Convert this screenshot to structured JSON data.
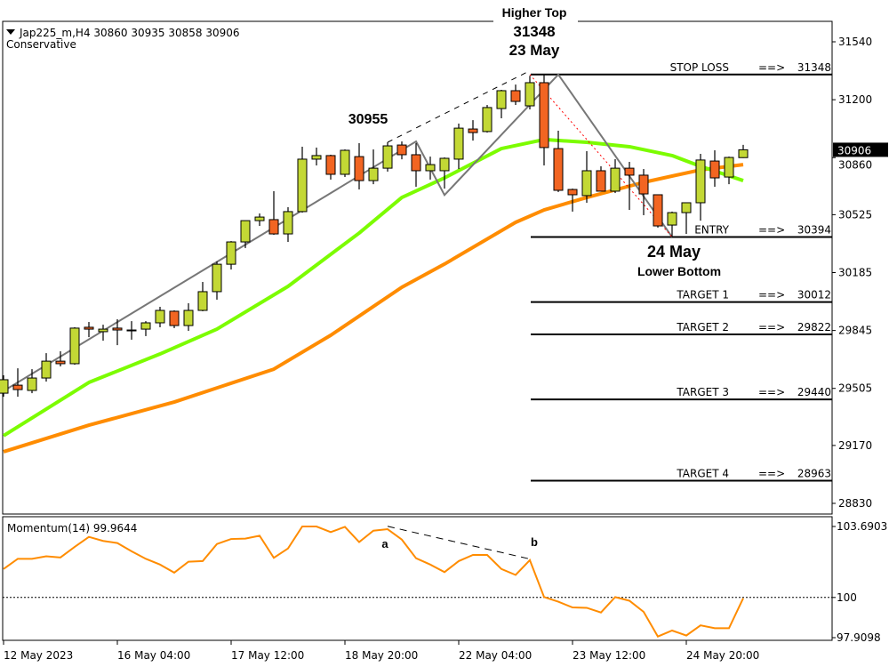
{
  "header": {
    "symbol_line": "Jap225_m,H4  30860 30935 30858 30906",
    "subtitle": "Conservative"
  },
  "annotations": {
    "higher_top": "Higher Top",
    "top_price": "31348",
    "top_date": "23 May",
    "prev_high": "30955",
    "bottom_date": "24 May",
    "lower_bottom": "Lower Bottom",
    "mom_a": "a",
    "mom_b": "b"
  },
  "chart_data": [
    {
      "type": "candlestick",
      "title": "Jap225_m,H4",
      "colors": {
        "bull": "#c3d835",
        "bear": "#f26522",
        "ma_fast": "#7cfc00",
        "ma_slow": "#ff8c00",
        "current_badge": "#000000"
      },
      "ylim": [
        28750,
        31640
      ],
      "y_ticks": [
        31540,
        31200,
        30860,
        30525,
        30185,
        29845,
        29505,
        29170,
        28830
      ],
      "current_price": "30906",
      "x_ticks": [
        {
          "index": 0,
          "label": "12 May 2023"
        },
        {
          "index": 8,
          "label": "16 May 04:00"
        },
        {
          "index": 16,
          "label": "17 May 12:00"
        },
        {
          "index": 24,
          "label": "18 May 20:00"
        },
        {
          "index": 32,
          "label": "22 May 04:00"
        },
        {
          "index": 40,
          "label": "23 May 12:00"
        },
        {
          "index": 48,
          "label": "24 May 20:00"
        }
      ],
      "ohlc": [
        [
          29477,
          29582,
          29456,
          29556
        ],
        [
          29524,
          29623,
          29456,
          29498
        ],
        [
          29493,
          29618,
          29477,
          29566
        ],
        [
          29566,
          29712,
          29545,
          29665
        ],
        [
          29665,
          29723,
          29634,
          29650
        ],
        [
          29650,
          29864,
          29644,
          29859
        ],
        [
          29864,
          29895,
          29806,
          29853
        ],
        [
          29838,
          29879,
          29785,
          29853
        ],
        [
          29859,
          29911,
          29759,
          29848
        ],
        [
          29848,
          29900,
          29791,
          29848
        ],
        [
          29853,
          29900,
          29812,
          29890
        ],
        [
          29890,
          29984,
          29864,
          29963
        ],
        [
          29958,
          29963,
          29859,
          29874
        ],
        [
          29874,
          30005,
          29843,
          29963
        ],
        [
          29963,
          30130,
          29958,
          30073
        ],
        [
          30073,
          30250,
          30026,
          30234
        ],
        [
          30234,
          30370,
          30203,
          30365
        ],
        [
          30365,
          30490,
          30329,
          30490
        ],
        [
          30490,
          30532,
          30459,
          30511
        ],
        [
          30496,
          30663,
          30407,
          30412
        ],
        [
          30412,
          30569,
          30365,
          30543
        ],
        [
          30543,
          30924,
          30537,
          30851
        ],
        [
          30851,
          30919,
          30814,
          30872
        ],
        [
          30872,
          30877,
          30731,
          30762
        ],
        [
          30762,
          30908,
          30746,
          30903
        ],
        [
          30866,
          30945,
          30673,
          30725
        ],
        [
          30725,
          30908,
          30704,
          30798
        ],
        [
          30798,
          30950,
          30778,
          30929
        ],
        [
          30934,
          30955,
          30850,
          30877
        ],
        [
          30877,
          30945,
          30689,
          30783
        ],
        [
          30783,
          30866,
          30731,
          30819
        ],
        [
          30783,
          30861,
          30678,
          30856
        ],
        [
          30851,
          31060,
          30793,
          31033
        ],
        [
          31028,
          31080,
          30960,
          31007
        ],
        [
          31013,
          31169,
          31007,
          31154
        ],
        [
          31148,
          31258,
          31091,
          31253
        ],
        [
          31253,
          31289,
          31169,
          31190
        ],
        [
          31164,
          31340,
          31143,
          31300
        ],
        [
          31300,
          31348,
          30814,
          30919
        ],
        [
          30913,
          31018,
          30658,
          30668
        ],
        [
          30673,
          30678,
          30543,
          30642
        ],
        [
          30637,
          30898,
          30595,
          30783
        ],
        [
          30783,
          30809,
          30663,
          30663
        ],
        [
          30663,
          30851,
          30652,
          30798
        ],
        [
          30798,
          30835,
          30553,
          30757
        ],
        [
          30757,
          30793,
          30522,
          30647
        ],
        [
          30642,
          30642,
          30449,
          30459
        ],
        [
          30464,
          30543,
          30394,
          30537
        ],
        [
          30537,
          30595,
          30412,
          30595
        ],
        [
          30595,
          30882,
          30490,
          30846
        ],
        [
          30840,
          30903,
          30689,
          30741
        ],
        [
          30746,
          30866,
          30704,
          30861
        ],
        [
          30860,
          30935,
          30858,
          30906
        ]
      ],
      "ma_fast": [
        [
          0,
          29227
        ],
        [
          6,
          29540
        ],
        [
          11,
          29707
        ],
        [
          15,
          29853
        ],
        [
          20,
          30104
        ],
        [
          25,
          30417
        ],
        [
          28,
          30626
        ],
        [
          31,
          30741
        ],
        [
          35,
          30913
        ],
        [
          38,
          30966
        ],
        [
          41,
          30950
        ],
        [
          44,
          30924
        ],
        [
          47,
          30872
        ],
        [
          49,
          30809
        ],
        [
          52,
          30725
        ]
      ],
      "ma_slow": [
        [
          0,
          29133
        ],
        [
          6,
          29289
        ],
        [
          12,
          29425
        ],
        [
          19,
          29618
        ],
        [
          23,
          29817
        ],
        [
          28,
          30099
        ],
        [
          31,
          30235
        ],
        [
          36,
          30480
        ],
        [
          38,
          30553
        ],
        [
          41,
          30626
        ],
        [
          45,
          30715
        ],
        [
          49,
          30788
        ],
        [
          52,
          30819
        ]
      ],
      "levels": [
        {
          "label": "STOP LOSS",
          "arrow": "==>",
          "value": "31348",
          "price": 31348
        },
        {
          "label": "ENTRY",
          "arrow": "==>",
          "value": "30394",
          "price": 30394
        },
        {
          "label": "TARGET 1",
          "arrow": "==>",
          "value": "30012",
          "price": 30012
        },
        {
          "label": "TARGET 2",
          "arrow": "==>",
          "value": "29822",
          "price": 29822
        },
        {
          "label": "TARGET 3",
          "arrow": "==>",
          "value": "29440",
          "price": 29440
        },
        {
          "label": "TARGET 4",
          "arrow": "==>",
          "value": "28963",
          "price": 28963
        }
      ],
      "zigzag": [
        [
          0,
          29490
        ],
        [
          29,
          30955
        ],
        [
          31,
          30640
        ],
        [
          39,
          31348
        ],
        [
          47,
          30394
        ]
      ],
      "upper_trendline": [
        [
          27,
          30950
        ],
        [
          37,
          31370
        ]
      ],
      "red_dotted_line": [
        [
          37,
          31348
        ],
        [
          47,
          30394
        ]
      ]
    },
    {
      "type": "line",
      "title": "Momentum(14) 99.9644",
      "ylim": [
        97.9098,
        103.6903
      ],
      "y_ticks": [
        "103.6903",
        "100",
        "97.9098"
      ],
      "reference_line": 100,
      "values": [
        101.48,
        102.01,
        102.01,
        102.14,
        102.08,
        102.63,
        103.15,
        102.94,
        102.83,
        102.4,
        102.01,
        101.71,
        101.29,
        101.86,
        101.89,
        102.78,
        103.04,
        103.06,
        103.21,
        102.06,
        102.55,
        103.69,
        103.69,
        103.4,
        103.67,
        102.88,
        103.47,
        103.55,
        103.01,
        102.04,
        101.71,
        101.32,
        101.89,
        102.21,
        102.21,
        101.48,
        101.17,
        101.94,
        100.02,
        99.78,
        99.48,
        99.46,
        99.22,
        100.02,
        99.83,
        99.25,
        97.97,
        98.28,
        98.02,
        98.55,
        98.4,
        98.4,
        99.96
      ],
      "divergence_line": [
        [
          27,
          103.7
        ],
        [
          37,
          102.0
        ]
      ]
    }
  ]
}
